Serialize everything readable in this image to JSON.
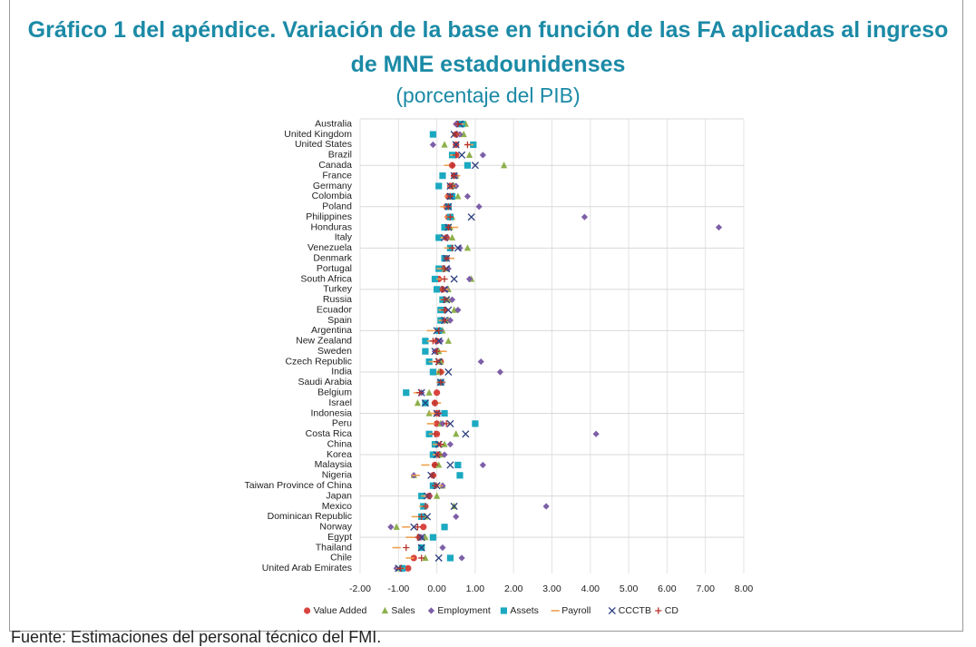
{
  "chart_data": {
    "type": "dot",
    "title": "Gráfico 1 del apéndice. Variación de la base en función de las FA aplicadas al ingreso de MNE estadounidenses",
    "subtitle": "(porcentaje del PIB)",
    "source": "Fuente: Estimaciones del personal técnico del FMI.",
    "categories": [
      "Australia",
      "United Kingdom",
      "United States",
      "Brazil",
      "Canada",
      "France",
      "Germany",
      "Colombia",
      "Poland",
      "Philippines",
      "Honduras",
      "Italy",
      "Venezuela",
      "Denmark",
      "Portugal",
      "South Africa",
      "Turkey",
      "Russia",
      "Ecuador",
      "Spain",
      "Argentina",
      "New Zealand",
      "Sweden",
      "Czech Republic",
      "India",
      "Saudi Arabia",
      "Belgium",
      "Israel",
      "Indonesia",
      "Peru",
      "Costa Rica",
      "China",
      "Korea",
      "Malaysia",
      "Nigeria",
      "Taiwan Province of China",
      "Japan",
      "Mexico",
      "Dominican Republic",
      "Norway",
      "Egypt",
      "Thailand",
      "Chile",
      "United Arab Emirates"
    ],
    "series": [
      {
        "name": "Value Added",
        "color": "#d9443f",
        "marker": "circle",
        "values": [
          0.6,
          0.5,
          0.5,
          0.5,
          0.4,
          0.45,
          0.35,
          0.3,
          0.25,
          0.3,
          0.3,
          0.25,
          0.35,
          0.25,
          0.15,
          0.05,
          0.15,
          0.2,
          0.2,
          0.15,
          0.1,
          0.0,
          0.0,
          0.1,
          0.1,
          0.1,
          0.0,
          -0.05,
          0.0,
          0.0,
          0.0,
          0.0,
          0.0,
          -0.05,
          -0.1,
          -0.05,
          -0.2,
          -0.3,
          -0.35,
          -0.35,
          -0.45,
          -0.4,
          -0.6,
          -0.75
        ]
      },
      {
        "name": "Sales",
        "color": "#8db04b",
        "marker": "triangle",
        "values": [
          0.75,
          0.7,
          0.2,
          0.85,
          1.75,
          0.5,
          0.45,
          0.55,
          0.3,
          0.4,
          0.35,
          0.4,
          0.8,
          0.2,
          0.2,
          0.9,
          0.3,
          0.3,
          0.45,
          0.3,
          0.15,
          0.3,
          0.05,
          0.1,
          0.05,
          0.1,
          -0.2,
          -0.5,
          -0.2,
          0.1,
          0.5,
          0.2,
          0.1,
          0.05,
          -0.6,
          0.15,
          0.0,
          0.45,
          -0.3,
          -1.05,
          -0.3,
          -0.4,
          -0.3,
          -0.95
        ]
      },
      {
        "name": "Employment",
        "color": "#7d5fa8",
        "marker": "diamond",
        "values": [
          0.5,
          0.6,
          -0.1,
          1.2,
          0.8,
          0.5,
          0.5,
          0.8,
          1.1,
          3.85,
          7.35,
          0.25,
          0.6,
          0.25,
          0.3,
          0.85,
          0.25,
          0.4,
          0.55,
          0.35,
          0.1,
          0.1,
          -0.05,
          1.15,
          1.65,
          0.15,
          -0.4,
          -0.3,
          0.05,
          0.15,
          4.15,
          0.35,
          0.2,
          1.2,
          -0.6,
          0.15,
          -0.2,
          2.85,
          0.5,
          -1.2,
          -0.4,
          0.15,
          0.65,
          -1.05
        ]
      },
      {
        "name": "Assets",
        "color": "#1aa9c0",
        "marker": "square",
        "values": [
          0.65,
          -0.1,
          0.95,
          0.4,
          0.8,
          0.15,
          0.05,
          0.4,
          0.3,
          0.35,
          0.2,
          0.05,
          0.35,
          0.2,
          0.05,
          -0.05,
          0.0,
          0.15,
          0.1,
          0.1,
          0.05,
          -0.3,
          -0.3,
          -0.2,
          -0.1,
          0.1,
          -0.8,
          -0.3,
          0.2,
          1.0,
          -0.2,
          -0.05,
          -0.1,
          0.55,
          0.6,
          -0.1,
          -0.4,
          -0.35,
          -0.4,
          0.2,
          -0.1,
          -0.4,
          0.35,
          -0.9
        ]
      },
      {
        "name": "Payroll",
        "color": "#f0a050",
        "marker": "dash",
        "values": [
          0.6,
          0.5,
          0.85,
          0.45,
          0.3,
          0.5,
          0.4,
          0.3,
          0.2,
          0.3,
          0.45,
          0.2,
          0.3,
          0.35,
          0.1,
          0.1,
          0.2,
          0.2,
          0.15,
          0.15,
          -0.15,
          -0.15,
          0.15,
          -0.1,
          0.1,
          0.1,
          -0.5,
          0.0,
          -0.1,
          -0.15,
          -0.1,
          0.0,
          0.0,
          -0.3,
          -0.55,
          0.05,
          -0.3,
          -0.35,
          -0.55,
          -0.8,
          -0.7,
          -1.05,
          -0.7,
          -0.95
        ]
      },
      {
        "name": "CCCTB",
        "color": "#2b3f7e",
        "marker": "x",
        "values": [
          0.6,
          0.45,
          0.5,
          0.65,
          1.0,
          0.45,
          0.35,
          0.35,
          0.3,
          0.9,
          0.3,
          0.2,
          0.55,
          0.25,
          0.25,
          0.45,
          0.2,
          0.25,
          0.3,
          0.2,
          0.0,
          0.05,
          -0.05,
          0.05,
          0.3,
          0.1,
          -0.4,
          -0.3,
          0.0,
          0.35,
          0.75,
          0.05,
          0.0,
          0.35,
          -0.15,
          0.0,
          -0.25,
          0.45,
          -0.25,
          -0.6,
          -0.4,
          -0.4,
          0.05,
          -1.0
        ]
      },
      {
        "name": "CD",
        "color": "#b8322a",
        "marker": "plus",
        "values": [
          0.55,
          0.5,
          0.8,
          0.5,
          0.4,
          0.45,
          0.4,
          0.35,
          0.3,
          0.35,
          0.3,
          0.25,
          0.4,
          0.25,
          0.2,
          0.2,
          0.15,
          0.2,
          0.2,
          0.2,
          0.05,
          -0.1,
          0.0,
          0.0,
          0.1,
          0.1,
          -0.45,
          -0.05,
          0.05,
          0.25,
          -0.05,
          0.1,
          0.05,
          -0.05,
          -0.1,
          -0.05,
          -0.2,
          -0.3,
          -0.4,
          -0.5,
          -0.5,
          -0.8,
          -0.4,
          -0.95
        ]
      }
    ],
    "xlim": [
      -2,
      8
    ],
    "xticks": [
      {
        "value": -2,
        "label": "-2.00"
      },
      {
        "value": -1,
        "label": "-1.00"
      },
      {
        "value": 0,
        "label": "0.00"
      },
      {
        "value": 1,
        "label": "1.00"
      },
      {
        "value": 2,
        "label": "2.00"
      },
      {
        "value": 3,
        "label": "3.00"
      },
      {
        "value": 4,
        "label": "4.00"
      },
      {
        "value": 5,
        "label": "5.00"
      },
      {
        "value": 6,
        "label": "6.00"
      },
      {
        "value": 7,
        "label": "7.00"
      },
      {
        "value": 8,
        "label": "8.00"
      }
    ],
    "grid": true,
    "legend": "bottom"
  }
}
